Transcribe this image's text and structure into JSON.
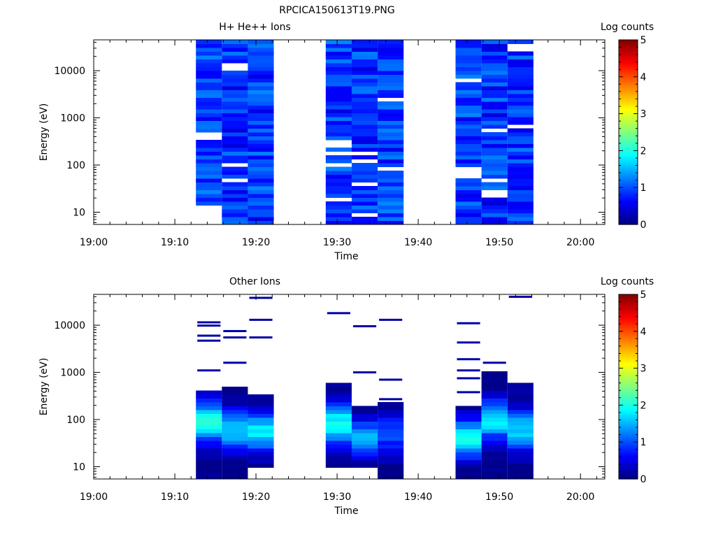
{
  "figure_title": "RPCICA150613T19.PNG",
  "chart_data": [
    {
      "type": "heatmap",
      "title": "H+ He++ Ions",
      "xlabel": "Time",
      "ylabel": "Energy (eV)",
      "y_scale": "log",
      "ylim": [
        5.5,
        45000
      ],
      "xlim": [
        "19:00",
        "20:03"
      ],
      "x_ticks": [
        "19:00",
        "19:10",
        "19:20",
        "19:30",
        "19:40",
        "19:50",
        "20:00"
      ],
      "y_ticks": [
        "10",
        "100",
        "1000",
        "10000"
      ],
      "colorbar": {
        "label": "Log counts",
        "range": [
          0,
          5
        ],
        "ticks": [
          "0",
          "1",
          "2",
          "3",
          "4",
          "5"
        ],
        "colormap": "jet"
      },
      "cells": [
        {
          "t_start": "19:12.6",
          "t_end": "19:15.8",
          "e_min": 15,
          "e_max": 45000,
          "log_counts": 0.9,
          "gaps_ev": [
            420
          ]
        },
        {
          "t_start": "19:15.8",
          "t_end": "19:19.0",
          "e_min": 5.5,
          "e_max": 45000,
          "log_counts": 0.85,
          "gaps_ev": [
            50,
            100,
            12000
          ]
        },
        {
          "t_start": "19:19.0",
          "t_end": "19:22.2",
          "e_min": 5.5,
          "e_max": 45000,
          "log_counts": 0.9,
          "gaps_ev": []
        },
        {
          "t_start": "19:28.6",
          "t_end": "19:31.8",
          "e_min": 5.5,
          "e_max": 45000,
          "log_counts": 0.9,
          "gaps_ev": [
            20,
            100,
            170,
            250,
            330
          ]
        },
        {
          "t_start": "19:31.8",
          "t_end": "19:35.0",
          "e_min": 5.5,
          "e_max": 45000,
          "log_counts": 0.85,
          "gaps_ev": [
            9,
            40,
            120,
            180
          ]
        },
        {
          "t_start": "19:35.0",
          "t_end": "19:38.2",
          "e_min": 5.5,
          "e_max": 45000,
          "log_counts": 0.9,
          "gaps_ev": [
            90,
            2300
          ]
        },
        {
          "t_start": "19:44.6",
          "t_end": "19:47.8",
          "e_min": 5.5,
          "e_max": 45000,
          "log_counts": 0.9,
          "gaps_ev": [
            55,
            75,
            6500
          ]
        },
        {
          "t_start": "19:47.8",
          "t_end": "19:51.0",
          "e_min": 5.5,
          "e_max": 45000,
          "log_counts": 0.85,
          "gaps_ev": [
            25,
            45,
            570
          ]
        },
        {
          "t_start": "19:51.0",
          "t_end": "19:54.2",
          "e_min": 5.5,
          "e_max": 45000,
          "log_counts": 0.9,
          "gaps_ev": [
            680,
            31000
          ]
        }
      ]
    },
    {
      "type": "heatmap",
      "title": "Other Ions",
      "xlabel": "Time",
      "ylabel": "Energy (eV)",
      "y_scale": "log",
      "ylim": [
        5.5,
        45000
      ],
      "xlim": [
        "19:00",
        "20:03"
      ],
      "x_ticks": [
        "19:00",
        "19:10",
        "19:20",
        "19:30",
        "19:40",
        "19:50",
        "20:00"
      ],
      "y_ticks": [
        "10",
        "100",
        "1000",
        "10000"
      ],
      "colorbar": {
        "label": "Log counts",
        "range": [
          0,
          5
        ],
        "ticks": [
          "0",
          "1",
          "2",
          "3",
          "4",
          "5"
        ],
        "colormap": "jet"
      },
      "cells": [
        {
          "t_start": "19:12.6",
          "t_end": "19:15.8",
          "e_min": 5.5,
          "e_max": 450,
          "peak_ev": 90,
          "peak_log_counts": 2.1,
          "isolated_ev": [
            1100,
            4700,
            6000,
            9800,
            11500
          ]
        },
        {
          "t_start": "19:15.8",
          "t_end": "19:19.0",
          "e_min": 5.5,
          "e_max": 480,
          "peak_ev": 60,
          "peak_log_counts": 1.6,
          "isolated_ev": [
            1600,
            5500,
            7500
          ]
        },
        {
          "t_start": "19:19.0",
          "t_end": "19:22.2",
          "e_min": 9,
          "e_max": 320,
          "peak_ev": 55,
          "peak_log_counts": 1.8,
          "isolated_ev": [
            5500,
            13000,
            38000
          ]
        },
        {
          "t_start": "19:28.6",
          "t_end": "19:31.8",
          "e_min": 9,
          "e_max": 600,
          "peak_ev": 80,
          "peak_log_counts": 2.0,
          "isolated_ev": [
            18000
          ]
        },
        {
          "t_start": "19:31.8",
          "t_end": "19:35.0",
          "e_min": 9,
          "e_max": 200,
          "peak_ev": 40,
          "peak_log_counts": 1.5,
          "isolated_ev": [
            1000,
            9500
          ]
        },
        {
          "t_start": "19:35.0",
          "t_end": "19:38.2",
          "e_min": 5.5,
          "e_max": 220,
          "peak_ev": 50,
          "peak_log_counts": 1.0,
          "isolated_ev": [
            270,
            700,
            13000
          ]
        },
        {
          "t_start": "19:44.6",
          "t_end": "19:47.8",
          "e_min": 5.5,
          "e_max": 200,
          "peak_ev": 40,
          "peak_log_counts": 1.9,
          "isolated_ev": [
            380,
            750,
            1100,
            1900,
            4300,
            11000
          ]
        },
        {
          "t_start": "19:47.8",
          "t_end": "19:51.0",
          "e_min": 5.5,
          "e_max": 1050,
          "peak_ev": 100,
          "peak_log_counts": 1.8,
          "isolated_ev": [
            1600
          ]
        },
        {
          "t_start": "19:51.0",
          "t_end": "19:54.2",
          "e_min": 5.5,
          "e_max": 620,
          "peak_ev": 60,
          "peak_log_counts": 1.7,
          "isolated_ev": [
            40000
          ]
        }
      ]
    }
  ]
}
